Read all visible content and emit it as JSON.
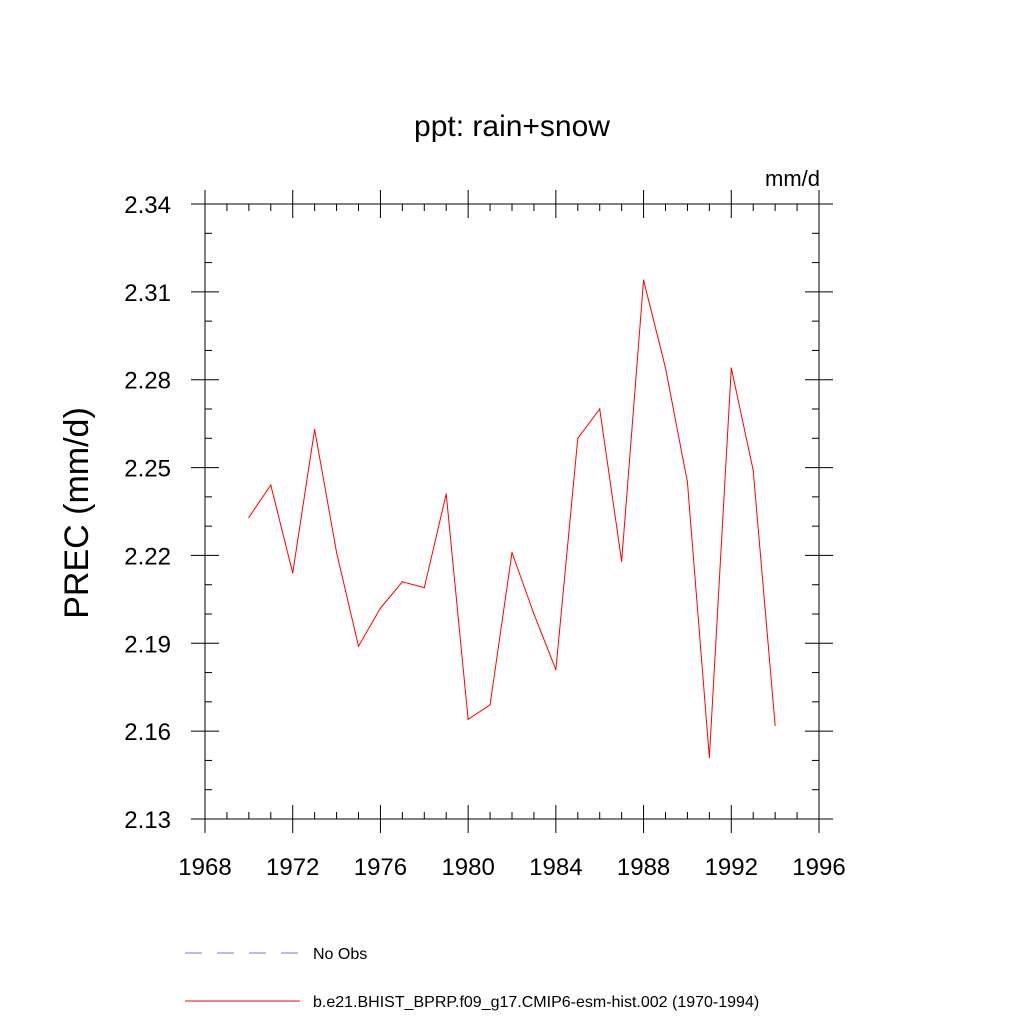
{
  "chart_data": {
    "type": "line",
    "title": "ppt: rain+snow",
    "units_label": "mm/d",
    "ylabel": "PREC  (mm/d)",
    "xlabel": "",
    "xlim": [
      1968,
      1996
    ],
    "ylim": [
      2.13,
      2.34
    ],
    "x_ticks": [
      1968,
      1972,
      1976,
      1980,
      1984,
      1988,
      1992,
      1996
    ],
    "x_tick_labels": [
      "1968",
      "1972",
      "1976",
      "1980",
      "1984",
      "1988",
      "1992",
      "1996"
    ],
    "y_ticks": [
      2.13,
      2.16,
      2.19,
      2.22,
      2.25,
      2.28,
      2.31,
      2.34
    ],
    "y_tick_labels": [
      "2.13",
      "2.16",
      "2.19",
      "2.22",
      "2.25",
      "2.28",
      "2.31",
      "2.34"
    ],
    "grid": false,
    "legend_position": "bottom",
    "series": [
      {
        "name": "b.e21.BHIST_BPRP.f09_g17.CMIP6-esm-hist.002 (1970-1994)",
        "color": "#ff0000",
        "style": "solid",
        "x": [
          1970,
          1971,
          1972,
          1973,
          1974,
          1975,
          1976,
          1977,
          1978,
          1979,
          1980,
          1981,
          1982,
          1983,
          1984,
          1985,
          1986,
          1987,
          1988,
          1989,
          1990,
          1991,
          1992,
          1993,
          1994
        ],
        "values": [
          2.233,
          2.244,
          2.214,
          2.263,
          2.221,
          2.189,
          2.202,
          2.211,
          2.209,
          2.241,
          2.164,
          2.169,
          2.221,
          2.2,
          2.181,
          2.26,
          2.27,
          2.218,
          2.314,
          2.284,
          2.245,
          2.151,
          2.284,
          2.249,
          2.162
        ]
      }
    ],
    "legend": [
      {
        "label": "No Obs",
        "color": "#7b6fd6",
        "style": "dashed"
      },
      {
        "label": "b.e21.BHIST_BPRP.f09_g17.CMIP6-esm-hist.002 (1970-1994)",
        "color": "#ff0000",
        "style": "solid"
      }
    ]
  }
}
